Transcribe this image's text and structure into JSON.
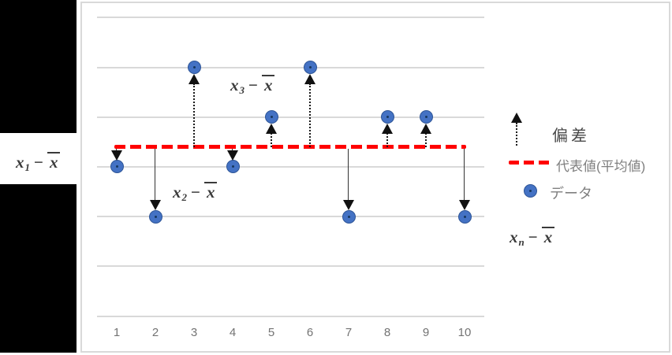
{
  "chart_data": {
    "type": "scatter",
    "title": "",
    "x": [
      1,
      2,
      3,
      4,
      5,
      6,
      7,
      8,
      9,
      10
    ],
    "x_tick_labels": [
      "1",
      "2",
      "3",
      "4",
      "5",
      "6",
      "7",
      "8",
      "9",
      "10"
    ],
    "series": [
      {
        "name": "データ",
        "values": [
          3,
          2,
          5,
          3,
          4,
          5,
          2,
          4,
          4,
          2
        ]
      }
    ],
    "mean": 3.4,
    "mean_line": {
      "label": "代表値(平均値)",
      "value": 3.4,
      "color": "#ff0000",
      "style": "dashed"
    },
    "deviation_arrows": {
      "label": "偏差",
      "up_style": "dotted",
      "down_style": "solid",
      "color": "#1a1a1a"
    },
    "ylim": [
      0,
      6
    ],
    "grid_values": [
      0,
      1,
      2,
      3,
      4,
      5,
      6
    ],
    "grid": "horizontal-only",
    "point_color": "#4472c4",
    "legend_position": "right",
    "annotations": [
      {
        "id": "x1",
        "var": "x",
        "sub": "1",
        "op": "−",
        "mean_var": "x",
        "placement": "outside-left",
        "target_x": 1
      },
      {
        "id": "x2",
        "var": "x",
        "sub": "2",
        "op": "−",
        "mean_var": "x",
        "placement": "inside-plot",
        "target_x": 2
      },
      {
        "id": "x3",
        "var": "x",
        "sub": "3",
        "op": "−",
        "mean_var": "x",
        "placement": "inside-plot",
        "target_x": 3
      },
      {
        "id": "xn",
        "var": "x",
        "sub": "n",
        "op": "−",
        "mean_var": "x",
        "placement": "legend-area",
        "target_x": null
      }
    ]
  },
  "legend": {
    "items": [
      {
        "icon": "up-arrow",
        "label": "偏差"
      },
      {
        "icon": "red-dashed-line",
        "label": "代表値(平均値)"
      },
      {
        "icon": "data-point",
        "label": "データ"
      }
    ]
  },
  "colors": {
    "point_fill": "#4472c4",
    "point_center": "#17375e",
    "mean_line": "#ff0000",
    "gridline": "#d9d9d9",
    "frame_border": "#d9d9d9",
    "arrow": "#1a1a1a",
    "tick_label": "#737373",
    "legend_text_gray": "#7f7f7f",
    "legend_text_dark": "#4a4a4a",
    "math_label": "#3a3a3a",
    "redaction": "#000000"
  }
}
